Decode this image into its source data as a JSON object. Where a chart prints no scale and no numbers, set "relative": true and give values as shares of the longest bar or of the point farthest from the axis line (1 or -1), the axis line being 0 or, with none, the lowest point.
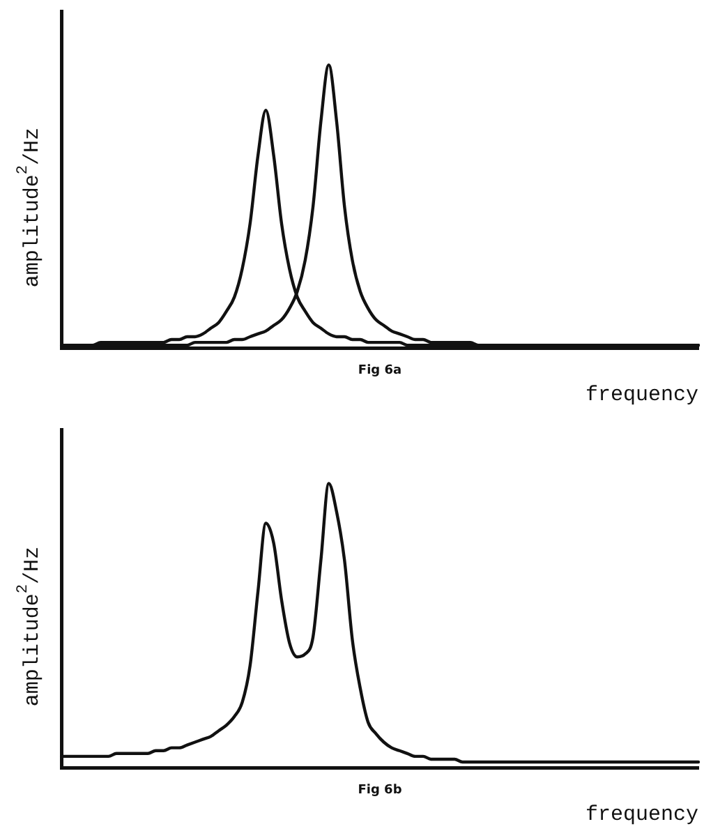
{
  "chart_data": [
    {
      "type": "line",
      "relative": true,
      "xlabel": "frequency",
      "ylabel": "amplitude$^{2}$/Hz",
      "annotations": [
        "Fig 6a"
      ],
      "grid": false,
      "legend": false,
      "marker": "none",
      "line_style": "solid",
      "categories": [
        null,
        null,
        null,
        null,
        null,
        null,
        null,
        null,
        null,
        null,
        null,
        null,
        null,
        null,
        null,
        null,
        null,
        null,
        null,
        null,
        null,
        null,
        null,
        null,
        null,
        null,
        null,
        null,
        null,
        null,
        null,
        null,
        null,
        null,
        null,
        null,
        null,
        null,
        null,
        null,
        null,
        null,
        null,
        null,
        null,
        null,
        null,
        null,
        null,
        null,
        null,
        null,
        null,
        null,
        null,
        null,
        null,
        null,
        null,
        null,
        null,
        null,
        null,
        null,
        null,
        null,
        null,
        null,
        null,
        null,
        null,
        null,
        null,
        null,
        null,
        null,
        null,
        null,
        null,
        null,
        null,
        null
      ],
      "series": [
        {
          "color": "#111111",
          "values": [
            0.01,
            0.01,
            0.01,
            0.01,
            0.01,
            0.02,
            0.02,
            0.02,
            0.02,
            0.02,
            0.02,
            0.02,
            0.02,
            0.02,
            0.03,
            0.03,
            0.04,
            0.04,
            0.05,
            0.07,
            0.09,
            0.13,
            0.18,
            0.28,
            0.44,
            0.68,
            0.84,
            0.68,
            0.44,
            0.28,
            0.18,
            0.13,
            0.09,
            0.07,
            0.05,
            0.04,
            0.04,
            0.03,
            0.03,
            0.02,
            0.02,
            0.02,
            0.02,
            0.02,
            0.01,
            0.01,
            0.01,
            0.01,
            0.01,
            0.01,
            0.01,
            0.01,
            0.01,
            0.01,
            0.01,
            0.01,
            0.01,
            0.01,
            0.01,
            0.01,
            0.01,
            0.01,
            0.01,
            0.01,
            0.01,
            0.01,
            0.01,
            0.01,
            0.01,
            0.01,
            0.01,
            0.01,
            0.01,
            0.01,
            0.01,
            0.01,
            0.01,
            0.01,
            0.01,
            0.01,
            0.01,
            0.01
          ]
        },
        {
          "color": "#111111",
          "values": [
            0.01,
            0.01,
            0.01,
            0.01,
            0.01,
            0.01,
            0.01,
            0.01,
            0.01,
            0.01,
            0.01,
            0.01,
            0.01,
            0.01,
            0.01,
            0.01,
            0.01,
            0.02,
            0.02,
            0.02,
            0.02,
            0.02,
            0.03,
            0.03,
            0.04,
            0.05,
            0.06,
            0.08,
            0.1,
            0.14,
            0.2,
            0.31,
            0.5,
            0.8,
            1,
            0.8,
            0.5,
            0.31,
            0.2,
            0.14,
            0.1,
            0.08,
            0.06,
            0.05,
            0.04,
            0.03,
            0.03,
            0.02,
            0.02,
            0.02,
            0.02,
            0.02,
            0.02,
            0.01,
            0.01,
            0.01,
            0.01,
            0.01,
            0.01,
            0.01,
            0.01,
            0.01,
            0.01,
            0.01,
            0.01,
            0.01,
            0.01,
            0.01,
            0.01,
            0.01,
            0.01,
            0.01,
            0.01,
            0.01,
            0.01,
            0.01,
            0.01,
            0.01,
            0.01,
            0.01,
            0.01,
            0.01
          ]
        }
      ]
    },
    {
      "type": "line",
      "relative": true,
      "xlabel": "frequency",
      "ylabel": "amplitude$^{2}$/Hz",
      "annotations": [
        "Fig 6b"
      ],
      "grid": false,
      "legend": false,
      "marker": "none",
      "line_style": "solid",
      "categories": [
        null,
        null,
        null,
        null,
        null,
        null,
        null,
        null,
        null,
        null,
        null,
        null,
        null,
        null,
        null,
        null,
        null,
        null,
        null,
        null,
        null,
        null,
        null,
        null,
        null,
        null,
        null,
        null,
        null,
        null,
        null,
        null,
        null,
        null,
        null,
        null,
        null,
        null,
        null,
        null,
        null,
        null,
        null,
        null,
        null,
        null,
        null,
        null,
        null,
        null,
        null,
        null,
        null,
        null,
        null,
        null,
        null,
        null,
        null,
        null,
        null,
        null,
        null,
        null,
        null,
        null,
        null,
        null,
        null,
        null,
        null,
        null,
        null,
        null,
        null,
        null,
        null,
        null,
        null,
        null,
        null,
        null
      ],
      "series": [
        {
          "color": "#111111",
          "values": [
            0.04,
            0.04,
            0.04,
            0.04,
            0.04,
            0.04,
            0.04,
            0.05,
            0.05,
            0.05,
            0.05,
            0.05,
            0.06,
            0.06,
            0.07,
            0.07,
            0.08,
            0.09,
            0.1,
            0.11,
            0.13,
            0.15,
            0.18,
            0.23,
            0.36,
            0.62,
            0.86,
            0.79,
            0.59,
            0.44,
            0.39,
            0.4,
            0.46,
            0.73,
            1,
            0.9,
            0.73,
            0.45,
            0.28,
            0.16,
            0.12,
            0.09,
            0.07,
            0.06,
            0.05,
            0.04,
            0.04,
            0.03,
            0.03,
            0.03,
            0.03,
            0.02,
            0.02,
            0.02,
            0.02,
            0.02,
            0.02,
            0.02,
            0.02,
            0.02,
            0.02,
            0.02,
            0.02,
            0.02,
            0.02,
            0.02,
            0.02,
            0.02,
            0.02,
            0.02,
            0.02,
            0.02,
            0.02,
            0.02,
            0.02,
            0.02,
            0.02,
            0.02,
            0.02,
            0.02,
            0.02,
            0.02
          ]
        }
      ]
    }
  ]
}
